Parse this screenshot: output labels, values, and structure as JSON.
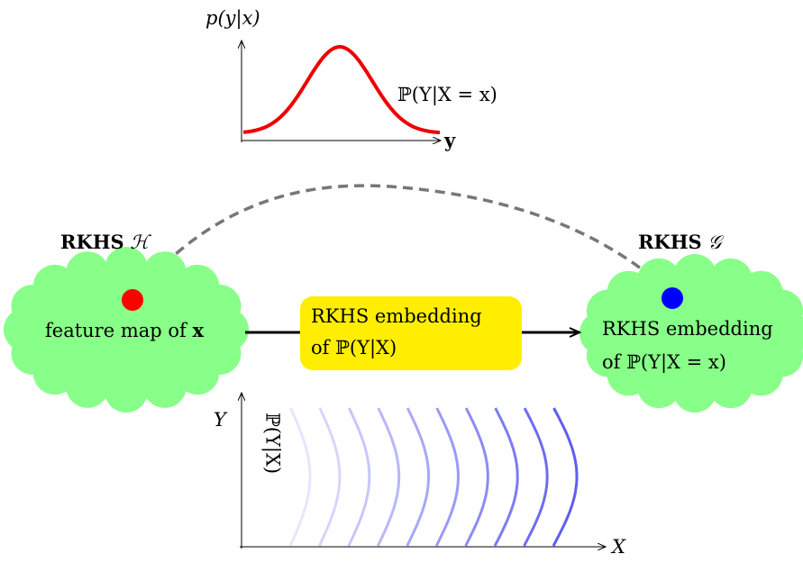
{
  "top_plot": {
    "ylabel": "p(y|x)",
    "xlabel": "y",
    "curve_label": "ℙ(Y|X = x)",
    "curve_color": "#ee0000"
  },
  "left_space": {
    "title_prefix": "RKHS",
    "title_symbol": "ℋ",
    "point_label": "feature map of",
    "point_var": "x",
    "cloud_color": "#88ff88",
    "point_color": "#ff0000"
  },
  "right_space": {
    "title_prefix": "RKHS",
    "title_symbol": "𝒢",
    "label_line1": "RKHS embedding",
    "label_line2": "of ℙ(Y|X = x)",
    "cloud_color": "#88ff88",
    "point_color": "#0000ff"
  },
  "operator_box": {
    "line1": "RKHS embedding",
    "line2": "of ℙ(Y|X)",
    "color": "#ffee00"
  },
  "bottom_plot": {
    "xlabel": "X",
    "ylabel": "Y",
    "rotated_label": "ℙ(Y|X)",
    "curve_color": "#5555ee",
    "curve_count": 10
  }
}
